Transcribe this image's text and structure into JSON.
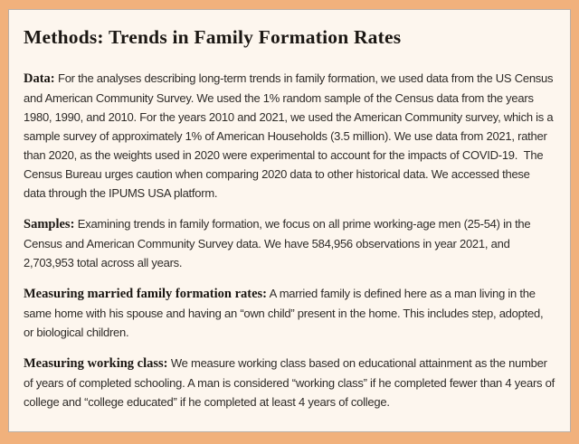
{
  "colors": {
    "border": "#f1b17c",
    "card_background": "#fdf6ee",
    "heading": "#1b1713",
    "body_text": "#2e2b28"
  },
  "page": {
    "title": "Methods: Trends in Family Formation Rates",
    "paragraphs": [
      {
        "label": "Data:",
        "text": " For the analyses describing long-term trends in family formation, we used data from the US Census and American Community Survey. We used the 1% random sample of the Census data from the years 1980, 1990, and 2010. For the years 2010 and 2021, we used the American Community survey, which is a sample survey of approximately 1% of American Households (3.5 million). We use data from 2021, rather than 2020, as the weights used in 2020 were experimental to account for the impacts of COVID-19.  The Census Bureau urges caution when comparing 2020 data to other historical data. We accessed these data through the IPUMS USA platform."
      },
      {
        "label": "Samples:",
        "text": " Examining trends in family formation, we focus on all prime working-age men (25-54) in the Census and American Community Survey data. We have 584,956 observations in year 2021, and 2,703,953 total across all years."
      },
      {
        "label": "Measuring married family formation rates:",
        "text": " A married family is defined here as a man living in the same home with his spouse and having an “own child” present in the home. This includes step, adopted, or biological children."
      },
      {
        "label": "Measuring working class:",
        "text": " We measure working class based on educational attainment as the number of years of completed schooling. A man is considered “working class” if he completed fewer than 4 years of college and “college educated” if he completed at least 4 years of college."
      }
    ]
  }
}
